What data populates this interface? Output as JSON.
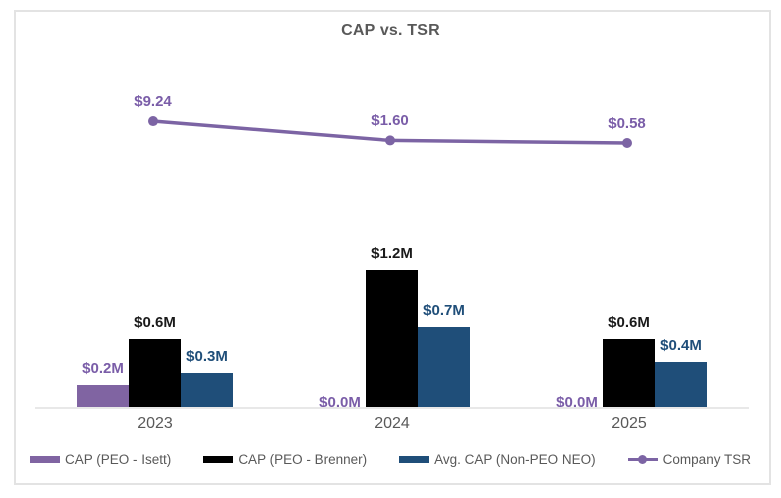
{
  "title": "CAP vs. TSR",
  "colors": {
    "purple": "#8064A2",
    "purple_label": "#7A5DA8",
    "black": "#000000",
    "black_label": "#1a1a1a",
    "blue": "#1F4E79",
    "blue_label": "#1F4E79",
    "tsr_line": "#7C64A4",
    "text_gray": "#595959",
    "axis_gray": "#e8e8e8"
  },
  "chart_data": {
    "type": "bar",
    "subtype": "combo-bar-line",
    "title": "CAP vs. TSR",
    "xlabel": "",
    "ylabel": "",
    "grid": false,
    "legend_position": "bottom",
    "categories": [
      "2023",
      "2024",
      "2025"
    ],
    "series": [
      {
        "name": "CAP (PEO - Isett)",
        "kind": "bar",
        "color": "#8064A2",
        "label_color": "#7A5DA8",
        "values": [
          0.2,
          0.0,
          0.0
        ],
        "labels": [
          "$0.2M",
          "$0.0M",
          "$0.0M"
        ]
      },
      {
        "name": "CAP (PEO - Brenner)",
        "kind": "bar",
        "color": "#000000",
        "label_color": "#1a1a1a",
        "values": [
          0.6,
          1.2,
          0.6
        ],
        "labels": [
          "$0.6M",
          "$1.2M",
          "$0.6M"
        ]
      },
      {
        "name": "Avg. CAP (Non-PEO NEO)",
        "kind": "bar",
        "color": "#1F4E79",
        "label_color": "#1F4E79",
        "values": [
          0.3,
          0.7,
          0.4
        ],
        "labels": [
          "$0.3M",
          "$0.7M",
          "$0.4M"
        ]
      },
      {
        "name": "Company TSR",
        "kind": "line",
        "color": "#7C64A4",
        "label_color": "#7A5DA8",
        "values": [
          9.24,
          1.6,
          0.58
        ],
        "labels": [
          "$9.24",
          "$1.60",
          "$0.58"
        ]
      }
    ],
    "bar_axis_units": "$M",
    "bar_ylim": [
      0,
      1.4
    ],
    "line_ylim_visible_range": [
      0.58,
      9.24
    ]
  }
}
